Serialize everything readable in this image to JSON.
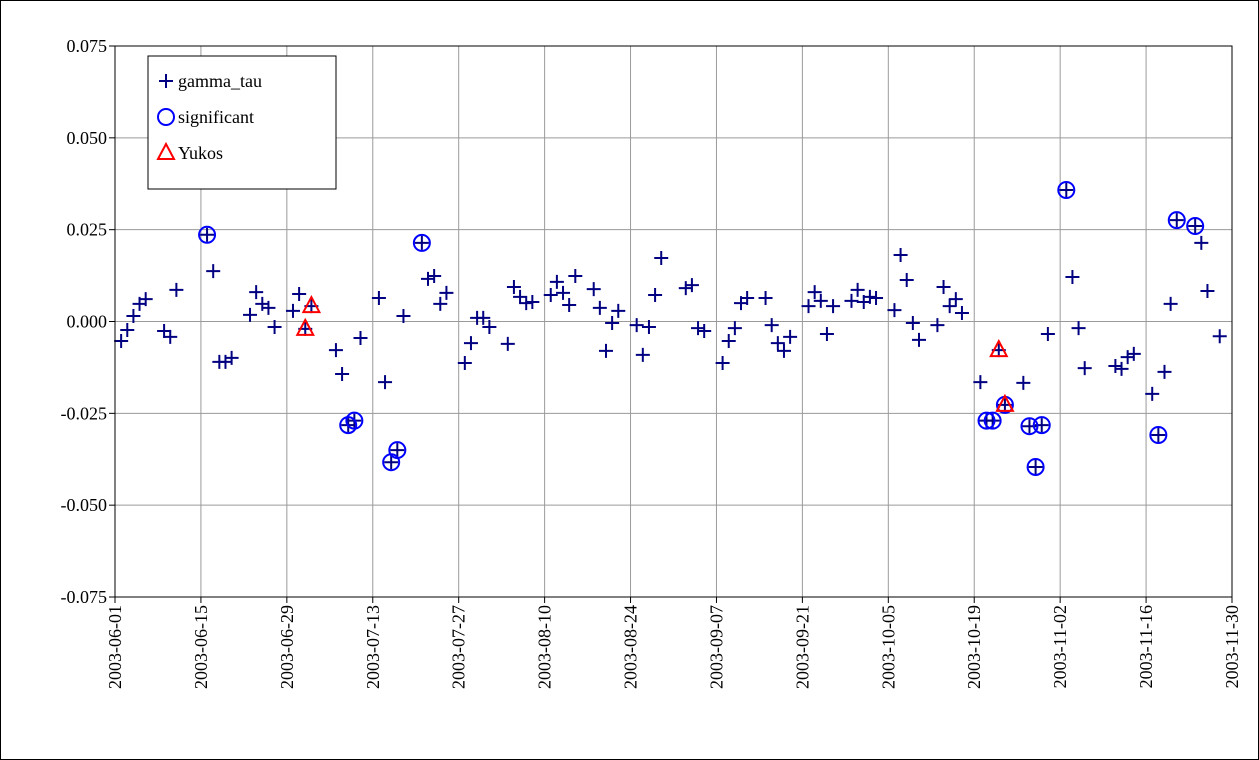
{
  "chart_data": {
    "type": "scatter",
    "xlim": [
      "2003-06-01",
      "2003-11-30"
    ],
    "xticks": [
      "2003-06-01",
      "2003-06-15",
      "2003-06-29",
      "2003-07-13",
      "2003-07-27",
      "2003-08-10",
      "2003-08-24",
      "2003-09-07",
      "2003-09-21",
      "2003-10-05",
      "2003-10-19",
      "2003-11-02",
      "2003-11-16",
      "2003-11-30"
    ],
    "ylim": [
      -0.075,
      0.075
    ],
    "yticks": [
      {
        "value": -0.075,
        "label": "-0.075"
      },
      {
        "value": -0.05,
        "label": "-0.050"
      },
      {
        "value": -0.025,
        "label": "-0.025"
      },
      {
        "value": 0,
        "label": "0.000"
      },
      {
        "value": 0.025,
        "label": "0.025"
      },
      {
        "value": 0.05,
        "label": "0.050"
      },
      {
        "value": 0.075,
        "label": "0.075"
      }
    ],
    "grid": true,
    "legend": "upper left",
    "series": [
      {
        "name": "gamma_tau",
        "color": "#000080",
        "marker": "plus",
        "x": [
          "2003-06-02",
          "2003-06-03",
          "2003-06-04",
          "2003-06-05",
          "2003-06-06",
          "2003-06-09",
          "2003-06-10",
          "2003-06-11",
          "2003-06-16",
          "2003-06-17",
          "2003-06-18",
          "2003-06-19",
          "2003-06-20",
          "2003-06-23",
          "2003-06-24",
          "2003-06-25",
          "2003-06-26",
          "2003-06-27",
          "2003-06-30",
          "2003-07-01",
          "2003-07-02",
          "2003-07-03",
          "2003-07-07",
          "2003-07-08",
          "2003-07-09",
          "2003-07-10",
          "2003-07-11",
          "2003-07-14",
          "2003-07-15",
          "2003-07-16",
          "2003-07-17",
          "2003-07-18",
          "2003-07-21",
          "2003-07-22",
          "2003-07-23",
          "2003-07-24",
          "2003-07-25",
          "2003-07-28",
          "2003-07-29",
          "2003-07-30",
          "2003-07-31",
          "2003-08-01",
          "2003-08-04",
          "2003-08-05",
          "2003-08-06",
          "2003-08-07",
          "2003-08-08",
          "2003-08-11",
          "2003-08-12",
          "2003-08-13",
          "2003-08-14",
          "2003-08-15",
          "2003-08-18",
          "2003-08-19",
          "2003-08-20",
          "2003-08-21",
          "2003-08-22",
          "2003-08-25",
          "2003-08-26",
          "2003-08-27",
          "2003-08-28",
          "2003-08-29",
          "2003-09-02",
          "2003-09-03",
          "2003-09-04",
          "2003-09-05",
          "2003-09-08",
          "2003-09-09",
          "2003-09-10",
          "2003-09-11",
          "2003-09-12",
          "2003-09-15",
          "2003-09-16",
          "2003-09-17",
          "2003-09-18",
          "2003-09-19",
          "2003-09-22",
          "2003-09-23",
          "2003-09-24",
          "2003-09-25",
          "2003-09-26",
          "2003-09-29",
          "2003-09-30",
          "2003-10-01",
          "2003-10-02",
          "2003-10-03",
          "2003-10-06",
          "2003-10-07",
          "2003-10-08",
          "2003-10-09",
          "2003-10-10",
          "2003-10-13",
          "2003-10-14",
          "2003-10-15",
          "2003-10-16",
          "2003-10-17",
          "2003-10-20",
          "2003-10-21",
          "2003-10-22",
          "2003-10-23",
          "2003-10-24",
          "2003-10-27",
          "2003-10-28",
          "2003-10-29",
          "2003-10-30",
          "2003-10-31",
          "2003-11-03",
          "2003-11-04",
          "2003-11-05",
          "2003-11-06",
          "2003-11-11",
          "2003-11-12",
          "2003-11-13",
          "2003-11-14",
          "2003-11-17",
          "2003-11-18",
          "2003-11-19",
          "2003-11-20",
          "2003-11-21",
          "2003-11-24",
          "2003-11-25",
          "2003-11-26",
          "2003-11-28"
        ],
        "values": [
          -0.0053,
          -0.0023,
          0.0015,
          0.0048,
          0.0061,
          -0.0026,
          -0.0042,
          0.0086,
          0.0236,
          0.0137,
          -0.011,
          -0.011,
          -0.0099,
          0.0018,
          0.008,
          0.0048,
          0.0037,
          -0.0015,
          0.0029,
          0.0075,
          -0.002,
          0.0042,
          -0.0078,
          -0.0143,
          -0.0282,
          -0.027,
          -0.0045,
          0.0064,
          -0.0165,
          -0.0383,
          -0.035,
          0.0015,
          0.0214,
          0.0116,
          0.0124,
          0.0048,
          0.0078,
          -0.0113,
          -0.0059,
          0.001,
          0.001,
          -0.0015,
          -0.0061,
          0.0094,
          0.0067,
          0.005,
          0.0053,
          0.0072,
          0.0108,
          0.0078,
          0.0045,
          0.0124,
          0.0088,
          0.0037,
          -0.008,
          -0.0004,
          0.0029,
          -0.001,
          -0.0091,
          -0.0015,
          0.0072,
          0.0173,
          0.0091,
          0.0099,
          -0.0018,
          -0.0026,
          -0.0113,
          -0.0053,
          -0.0018,
          0.005,
          0.0064,
          0.0064,
          -0.001,
          -0.0059,
          -0.008,
          -0.0042,
          0.0042,
          0.008,
          0.0056,
          -0.0034,
          0.0042,
          0.0056,
          0.0086,
          0.0053,
          0.0067,
          0.0064,
          0.0031,
          0.0181,
          0.0113,
          -0.0004,
          -0.005,
          -0.001,
          0.0094,
          0.0042,
          0.0061,
          0.0023,
          -0.0165,
          -0.027,
          -0.027,
          -0.0078,
          -0.0227,
          -0.0167,
          -0.0285,
          -0.0396,
          -0.0282,
          -0.0034,
          0.0358,
          0.0121,
          -0.0018,
          -0.0127,
          -0.0121,
          -0.0129,
          -0.0097,
          -0.0088,
          -0.0197,
          -0.0309,
          -0.0137,
          0.0048,
          0.0276,
          0.026,
          0.0214,
          0.0083,
          -0.004
        ]
      },
      {
        "name": "significant",
        "color": "#0000ff",
        "marker": "circle",
        "x": [
          "2003-06-16",
          "2003-07-09",
          "2003-07-10",
          "2003-07-16",
          "2003-07-17",
          "2003-07-21",
          "2003-10-21",
          "2003-10-22",
          "2003-10-24",
          "2003-10-28",
          "2003-10-29",
          "2003-10-30",
          "2003-11-03",
          "2003-11-18",
          "2003-11-21",
          "2003-11-24"
        ],
        "values": [
          0.0236,
          -0.0282,
          -0.027,
          -0.0383,
          -0.035,
          0.0214,
          -0.027,
          -0.027,
          -0.0227,
          -0.0285,
          -0.0396,
          -0.0282,
          0.0358,
          -0.0309,
          0.0276,
          0.026
        ]
      },
      {
        "name": "Yukos",
        "color": "#ff0000",
        "marker": "triangle",
        "x": [
          "2003-07-02",
          "2003-07-03",
          "2003-10-23",
          "2003-10-24"
        ],
        "values": [
          -0.002,
          0.0042,
          -0.0078,
          -0.0227
        ]
      }
    ]
  }
}
